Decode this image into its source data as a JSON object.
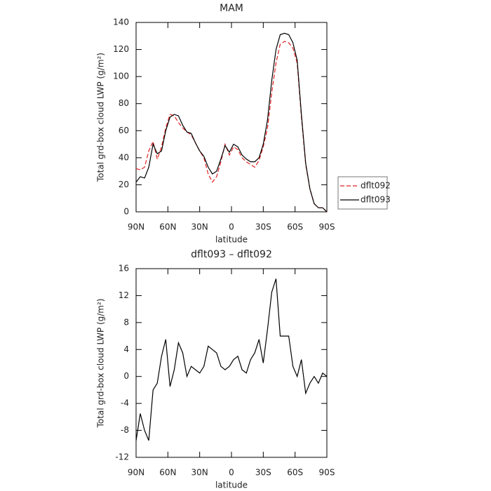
{
  "chart_data": [
    {
      "type": "line",
      "title": "MAM",
      "xlabel": "latitude",
      "ylabel": "Total grd-box cloud LWP (g/m²)",
      "x": [
        90,
        86,
        82,
        78,
        74,
        70,
        66,
        62,
        58,
        54,
        50,
        46,
        42,
        38,
        34,
        30,
        26,
        22,
        18,
        14,
        10,
        6,
        2,
        -2,
        -6,
        -10,
        -14,
        -18,
        -22,
        -26,
        -30,
        -34,
        -38,
        -42,
        -46,
        -50,
        -54,
        -58,
        -62,
        -66,
        -70,
        -74,
        -78,
        -82,
        -86,
        -90
      ],
      "series": [
        {
          "name": "dflt092",
          "color": "#e02020",
          "dash": true,
          "values": [
            32,
            31,
            33,
            45,
            52,
            39,
            48,
            62,
            72,
            71,
            66,
            62,
            59,
            57,
            51,
            45,
            40,
            28,
            22,
            26,
            37,
            50,
            42,
            48,
            46,
            40,
            37,
            35,
            33,
            38,
            48,
            62,
            88,
            110,
            124,
            126,
            125,
            121,
            110,
            70,
            35,
            17,
            6,
            3,
            3,
            0
          ]
        },
        {
          "name": "dflt093",
          "color": "#000000",
          "dash": false,
          "values": [
            22,
            26,
            25,
            33,
            50,
            43,
            45,
            60,
            70,
            72,
            71,
            64,
            59,
            58,
            51,
            45,
            41,
            33,
            28,
            30,
            39,
            49,
            44,
            50,
            48,
            42,
            39,
            37,
            37,
            40,
            50,
            68,
            97,
            120,
            131,
            132,
            131,
            125,
            112,
            72,
            36,
            17,
            6,
            3,
            3,
            0
          ]
        }
      ],
      "xlim": [
        90,
        -90
      ],
      "xticks": [
        {
          "value": 90,
          "label": "90N"
        },
        {
          "value": 60,
          "label": "60N"
        },
        {
          "value": 30,
          "label": "30N"
        },
        0,
        {
          "value": -30,
          "label": "30S"
        },
        {
          "value": -60,
          "label": "60S"
        },
        {
          "value": -90,
          "label": "90S"
        }
      ],
      "ylim": [
        0,
        140
      ],
      "yticks": [
        0,
        20,
        40,
        60,
        80,
        100,
        120,
        140
      ],
      "legend": "right"
    },
    {
      "type": "line",
      "title": "dflt093 – dflt092",
      "xlabel": "latitude",
      "ylabel": "Total grd-box cloud LWP (g/m²)",
      "x": [
        90,
        86,
        82,
        78,
        74,
        70,
        66,
        62,
        58,
        54,
        50,
        46,
        42,
        38,
        34,
        30,
        26,
        22,
        18,
        14,
        10,
        6,
        2,
        -2,
        -6,
        -10,
        -14,
        -18,
        -22,
        -26,
        -30,
        -34,
        -38,
        -42,
        -46,
        -50,
        -54,
        -58,
        -62,
        -66,
        -70,
        -74,
        -78,
        -82,
        -86,
        -90
      ],
      "values": [
        -9.5,
        -5.5,
        -8,
        -9.5,
        -2,
        -1,
        3,
        5.5,
        -1.5,
        1,
        5,
        3.5,
        0,
        1.5,
        1,
        0.5,
        1.5,
        4.5,
        4,
        3.5,
        1.5,
        1,
        1.5,
        2.5,
        3,
        1,
        0.5,
        2.5,
        3.5,
        5.5,
        2,
        7,
        12.5,
        14.5,
        6,
        6,
        6,
        1.5,
        0,
        2.5,
        -2.5,
        -1,
        0,
        -1,
        0.5,
        0
      ],
      "color": "#000000",
      "xlim": [
        90,
        -90
      ],
      "xticks": [
        {
          "value": 90,
          "label": "90N"
        },
        {
          "value": 60,
          "label": "60N"
        },
        {
          "value": 30,
          "label": "30N"
        },
        0,
        {
          "value": -30,
          "label": "30S"
        },
        {
          "value": -60,
          "label": "60S"
        },
        {
          "value": -90,
          "label": "90S"
        }
      ],
      "ylim": [
        -12,
        16
      ],
      "yticks": [
        -12,
        -8,
        -4,
        0,
        4,
        8,
        12,
        16
      ]
    }
  ]
}
